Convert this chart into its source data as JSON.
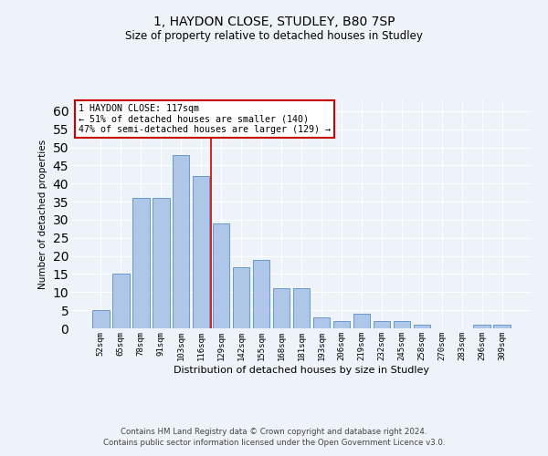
{
  "title1": "1, HAYDON CLOSE, STUDLEY, B80 7SP",
  "title2": "Size of property relative to detached houses in Studley",
  "xlabel": "Distribution of detached houses by size in Studley",
  "ylabel": "Number of detached properties",
  "categories": [
    "52sqm",
    "65sqm",
    "78sqm",
    "91sqm",
    "103sqm",
    "116sqm",
    "129sqm",
    "142sqm",
    "155sqm",
    "168sqm",
    "181sqm",
    "193sqm",
    "206sqm",
    "219sqm",
    "232sqm",
    "245sqm",
    "258sqm",
    "270sqm",
    "283sqm",
    "296sqm",
    "309sqm"
  ],
  "values": [
    5,
    15,
    36,
    36,
    48,
    42,
    29,
    17,
    19,
    11,
    11,
    3,
    2,
    4,
    2,
    2,
    1,
    0,
    0,
    1,
    1
  ],
  "bar_color": "#aec6e8",
  "bar_edge_color": "#5a8fc2",
  "vline_x": 5.5,
  "vline_color": "#cc0000",
  "annotation_text": "1 HAYDON CLOSE: 117sqm\n← 51% of detached houses are smaller (140)\n47% of semi-detached houses are larger (129) →",
  "annotation_box_color": "#ffffff",
  "annotation_box_edge_color": "#cc0000",
  "ylim": [
    0,
    63
  ],
  "yticks": [
    0,
    5,
    10,
    15,
    20,
    25,
    30,
    35,
    40,
    45,
    50,
    55,
    60
  ],
  "footer1": "Contains HM Land Registry data © Crown copyright and database right 2024.",
  "footer2": "Contains public sector information licensed under the Open Government Licence v3.0.",
  "bg_color": "#eef2f9",
  "grid_color": "#ffffff"
}
